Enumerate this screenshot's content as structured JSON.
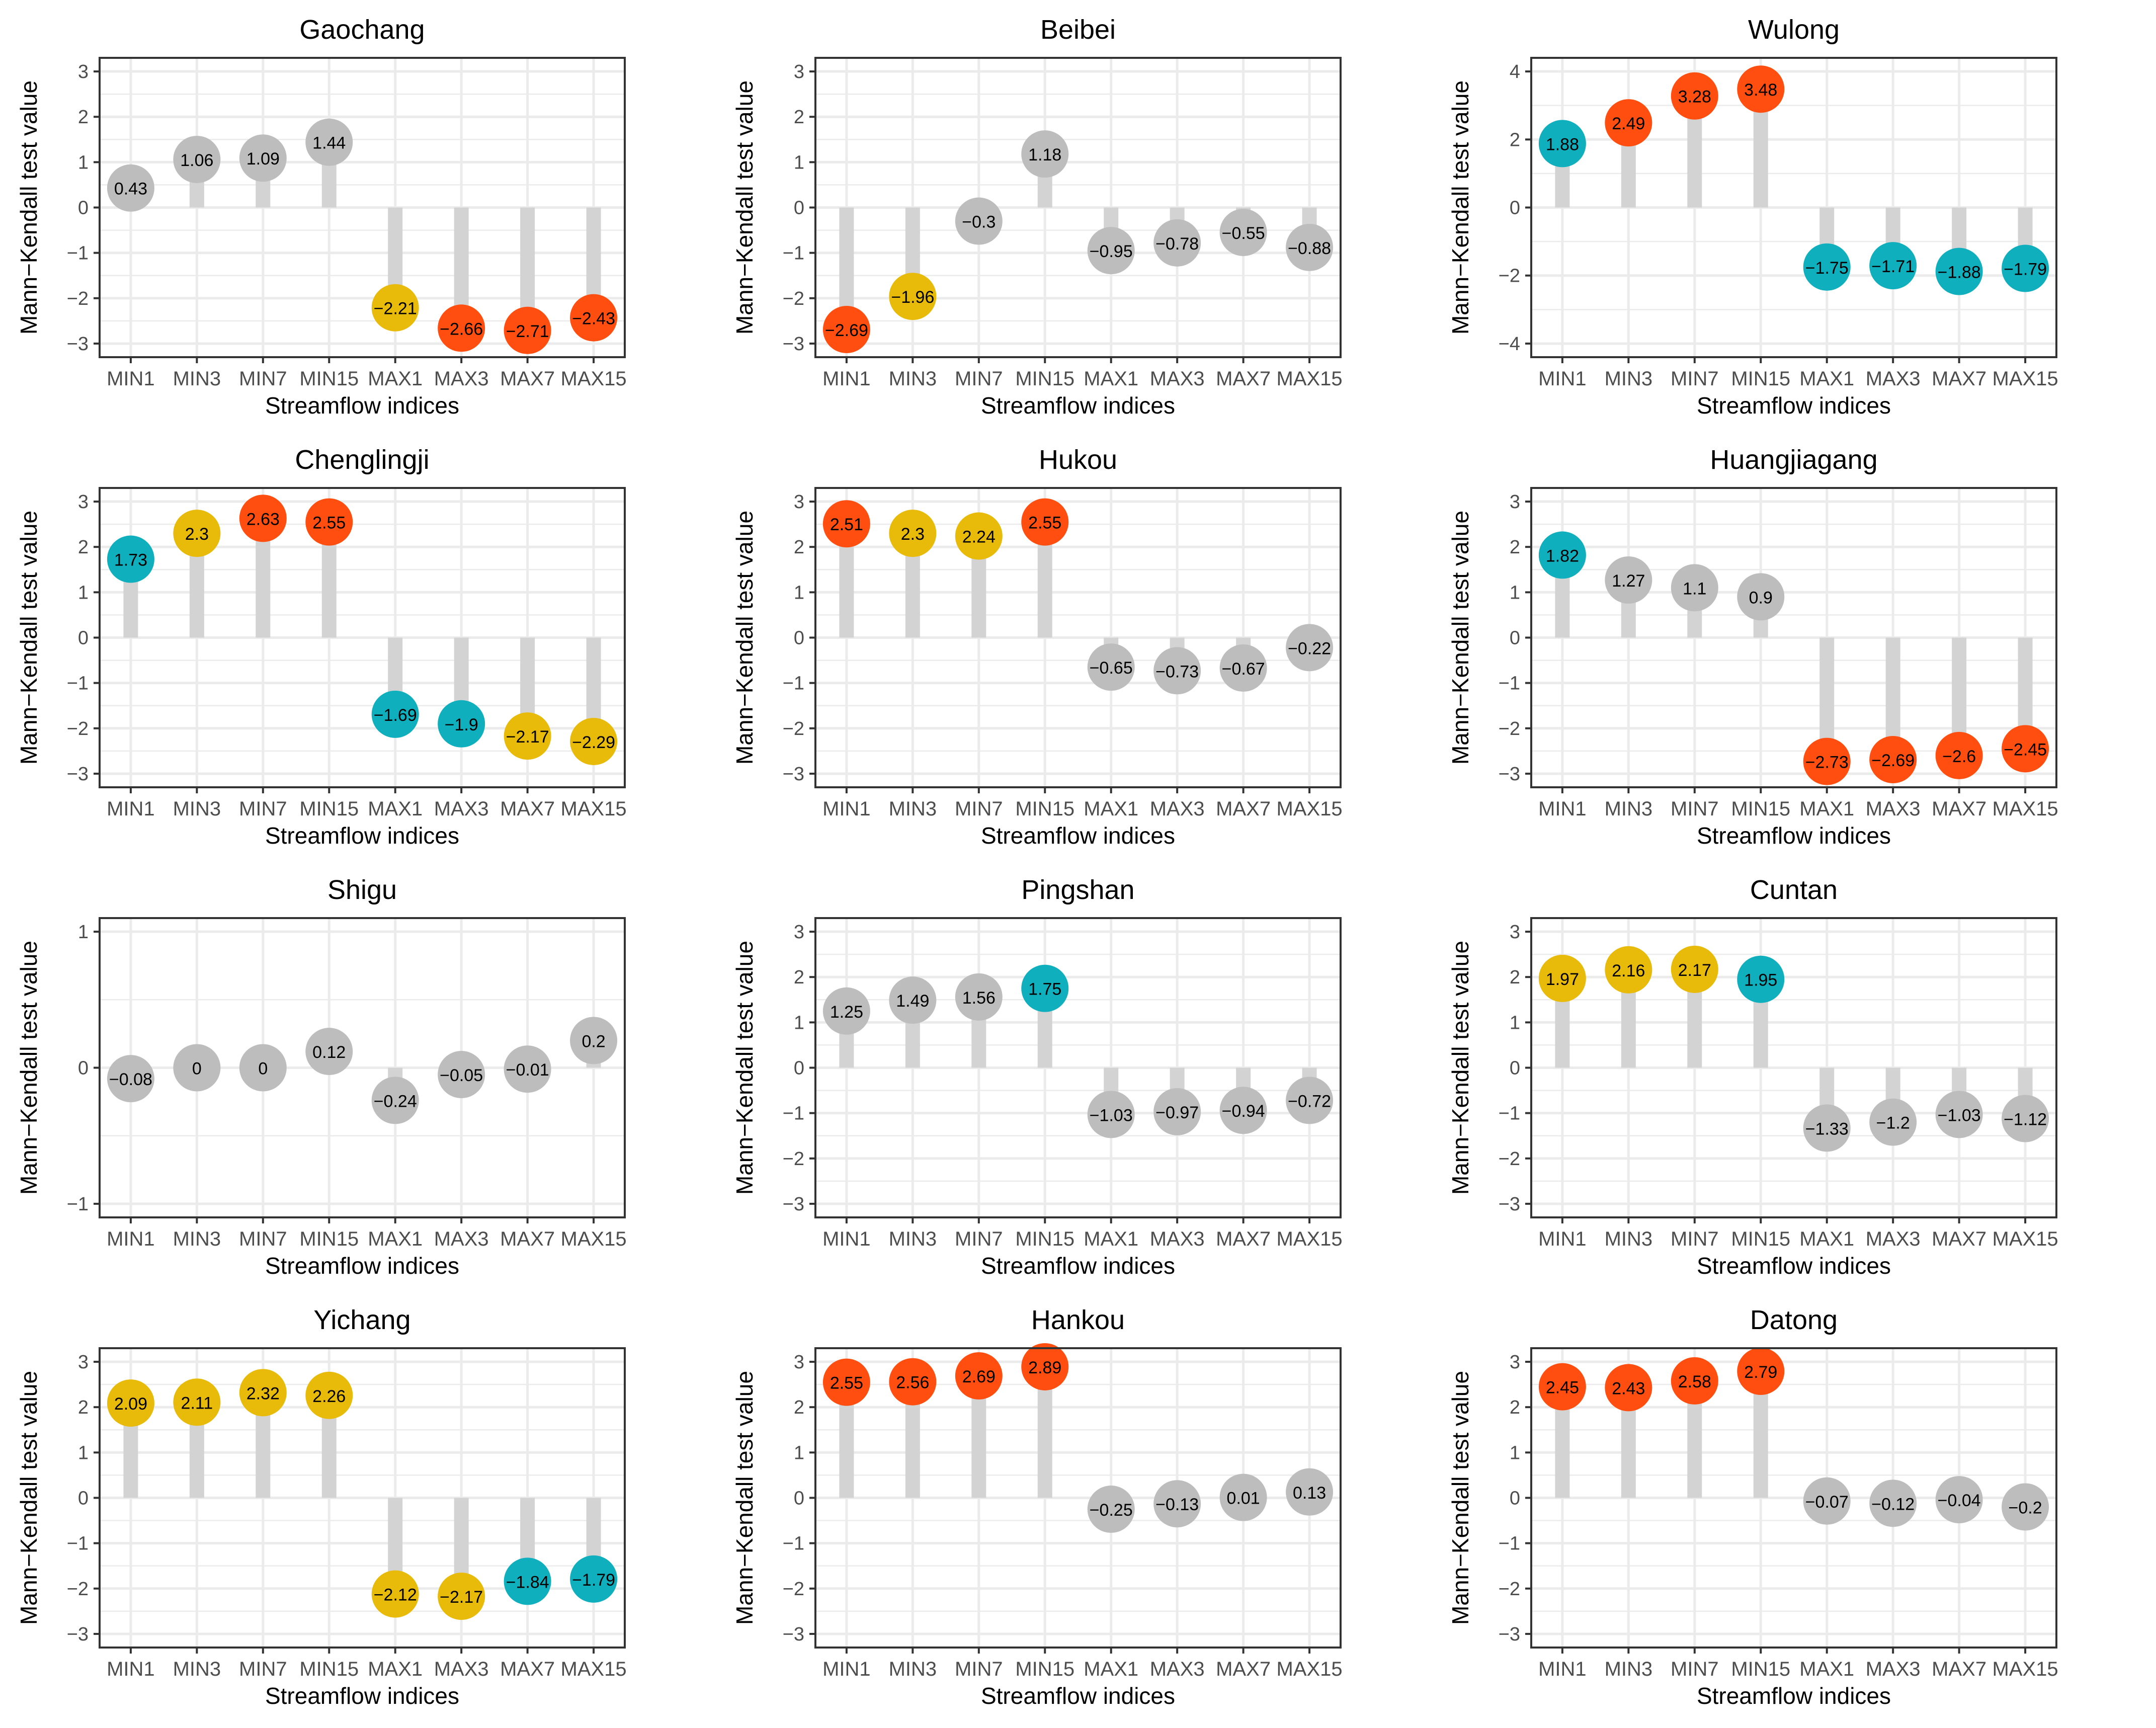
{
  "colors": {
    "gray": "#BDBDBD",
    "cyan": "#0FAFBE",
    "yellow": "#E8BA0A",
    "red": "#FF4E0F",
    "stem": "#D3D3D3",
    "grid": "#EBEBEB",
    "frame": "#333333",
    "tick_text": "#4D4D4D"
  },
  "chart_data": [
    {
      "type": "scatter",
      "title": "Gaochang",
      "xlabel": "Streamflow indices",
      "ylabel": "Mann−Kendall test value",
      "ylim": [
        -3.3,
        3.3
      ],
      "yticks": [
        -3,
        -2,
        -1,
        0,
        1,
        2,
        3
      ],
      "categories": [
        "MIN1",
        "MIN3",
        "MIN7",
        "MIN15",
        "MAX1",
        "MAX3",
        "MAX7",
        "MAX15"
      ],
      "values": [
        0.43,
        1.06,
        1.09,
        1.44,
        -2.21,
        -2.66,
        -2.71,
        -2.43
      ],
      "labels": [
        "0.43",
        "1.06",
        "1.09",
        "1.44",
        "−2.21",
        "−2.66",
        "−2.71",
        "−2.43"
      ],
      "colors": [
        "gray",
        "gray",
        "gray",
        "gray",
        "yellow",
        "red",
        "red",
        "red"
      ]
    },
    {
      "type": "scatter",
      "title": "Beibei",
      "xlabel": "Streamflow indices",
      "ylabel": "Mann−Kendall test value",
      "ylim": [
        -3.3,
        3.3
      ],
      "yticks": [
        -3,
        -2,
        -1,
        0,
        1,
        2,
        3
      ],
      "categories": [
        "MIN1",
        "MIN3",
        "MIN7",
        "MIN15",
        "MAX1",
        "MAX3",
        "MAX7",
        "MAX15"
      ],
      "values": [
        -2.69,
        -1.96,
        -0.3,
        1.18,
        -0.95,
        -0.78,
        -0.55,
        -0.88
      ],
      "labels": [
        "−2.69",
        "−1.96",
        "−0.3",
        "1.18",
        "−0.95",
        "−0.78",
        "−0.55",
        "−0.88"
      ],
      "colors": [
        "red",
        "yellow",
        "gray",
        "gray",
        "gray",
        "gray",
        "gray",
        "gray"
      ]
    },
    {
      "type": "scatter",
      "title": "Wulong",
      "xlabel": "Streamflow indices",
      "ylabel": "Mann−Kendall test value",
      "ylim": [
        -4.4,
        4.4
      ],
      "yticks": [
        -4,
        -2,
        0,
        2,
        4
      ],
      "categories": [
        "MIN1",
        "MIN3",
        "MIN7",
        "MIN15",
        "MAX1",
        "MAX3",
        "MAX7",
        "MAX15"
      ],
      "values": [
        1.88,
        2.49,
        3.28,
        3.48,
        -1.75,
        -1.71,
        -1.88,
        -1.79
      ],
      "labels": [
        "1.88",
        "2.49",
        "3.28",
        "3.48",
        "−1.75",
        "−1.71",
        "−1.88",
        "−1.79"
      ],
      "colors": [
        "cyan",
        "red",
        "red",
        "red",
        "cyan",
        "cyan",
        "cyan",
        "cyan"
      ]
    },
    {
      "type": "scatter",
      "title": "Chenglingji",
      "xlabel": "Streamflow indices",
      "ylabel": "Mann−Kendall test value",
      "ylim": [
        -3.3,
        3.3
      ],
      "yticks": [
        -3,
        -2,
        -1,
        0,
        1,
        2,
        3
      ],
      "categories": [
        "MIN1",
        "MIN3",
        "MIN7",
        "MIN15",
        "MAX1",
        "MAX3",
        "MAX7",
        "MAX15"
      ],
      "values": [
        1.73,
        2.3,
        2.63,
        2.55,
        -1.69,
        -1.9,
        -2.17,
        -2.29
      ],
      "labels": [
        "1.73",
        "2.3",
        "2.63",
        "2.55",
        "−1.69",
        "−1.9",
        "−2.17",
        "−2.29"
      ],
      "colors": [
        "cyan",
        "yellow",
        "red",
        "red",
        "cyan",
        "cyan",
        "yellow",
        "yellow"
      ]
    },
    {
      "type": "scatter",
      "title": "Hukou",
      "xlabel": "Streamflow indices",
      "ylabel": "Mann−Kendall test value",
      "ylim": [
        -3.3,
        3.3
      ],
      "yticks": [
        -3,
        -2,
        -1,
        0,
        1,
        2,
        3
      ],
      "categories": [
        "MIN1",
        "MIN3",
        "MIN7",
        "MIN15",
        "MAX1",
        "MAX3",
        "MAX7",
        "MAX15"
      ],
      "values": [
        2.51,
        2.3,
        2.24,
        2.55,
        -0.65,
        -0.73,
        -0.67,
        -0.22
      ],
      "labels": [
        "2.51",
        "2.3",
        "2.24",
        "2.55",
        "−0.65",
        "−0.73",
        "−0.67",
        "−0.22"
      ],
      "colors": [
        "red",
        "yellow",
        "yellow",
        "red",
        "gray",
        "gray",
        "gray",
        "gray"
      ]
    },
    {
      "type": "scatter",
      "title": "Huangjiagang",
      "xlabel": "Streamflow indices",
      "ylabel": "Mann−Kendall test value",
      "ylim": [
        -3.3,
        3.3
      ],
      "yticks": [
        -3,
        -2,
        -1,
        0,
        1,
        2,
        3
      ],
      "categories": [
        "MIN1",
        "MIN3",
        "MIN7",
        "MIN15",
        "MAX1",
        "MAX3",
        "MAX7",
        "MAX15"
      ],
      "values": [
        1.82,
        1.27,
        1.1,
        0.9,
        -2.73,
        -2.69,
        -2.6,
        -2.45
      ],
      "labels": [
        "1.82",
        "1.27",
        "1.1",
        "0.9",
        "−2.73",
        "−2.69",
        "−2.6",
        "−2.45"
      ],
      "colors": [
        "cyan",
        "gray",
        "gray",
        "gray",
        "red",
        "red",
        "red",
        "red"
      ]
    },
    {
      "type": "scatter",
      "title": "Shigu",
      "xlabel": "Streamflow indices",
      "ylabel": "Mann−Kendall test value",
      "ylim": [
        -1.1,
        1.1
      ],
      "yticks": [
        -1,
        0,
        1
      ],
      "categories": [
        "MIN1",
        "MIN3",
        "MIN7",
        "MIN15",
        "MAX1",
        "MAX3",
        "MAX7",
        "MAX15"
      ],
      "values": [
        -0.08,
        0,
        0,
        0.12,
        -0.24,
        -0.05,
        -0.01,
        0.2
      ],
      "labels": [
        "−0.08",
        "0",
        "0",
        "0.12",
        "−0.24",
        "−0.05",
        "−0.01",
        "0.2"
      ],
      "colors": [
        "gray",
        "gray",
        "gray",
        "gray",
        "gray",
        "gray",
        "gray",
        "gray"
      ]
    },
    {
      "type": "scatter",
      "title": "Pingshan",
      "xlabel": "Streamflow indices",
      "ylabel": "Mann−Kendall test value",
      "ylim": [
        -3.3,
        3.3
      ],
      "yticks": [
        -3,
        -2,
        -1,
        0,
        1,
        2,
        3
      ],
      "categories": [
        "MIN1",
        "MIN3",
        "MIN7",
        "MIN15",
        "MAX1",
        "MAX3",
        "MAX7",
        "MAX15"
      ],
      "values": [
        1.25,
        1.49,
        1.56,
        1.75,
        -1.03,
        -0.97,
        -0.94,
        -0.72
      ],
      "labels": [
        "1.25",
        "1.49",
        "1.56",
        "1.75",
        "−1.03",
        "−0.97",
        "−0.94",
        "−0.72"
      ],
      "colors": [
        "gray",
        "gray",
        "gray",
        "cyan",
        "gray",
        "gray",
        "gray",
        "gray"
      ]
    },
    {
      "type": "scatter",
      "title": "Cuntan",
      "xlabel": "Streamflow indices",
      "ylabel": "Mann−Kendall test value",
      "ylim": [
        -3.3,
        3.3
      ],
      "yticks": [
        -3,
        -2,
        -1,
        0,
        1,
        2,
        3
      ],
      "categories": [
        "MIN1",
        "MIN3",
        "MIN7",
        "MIN15",
        "MAX1",
        "MAX3",
        "MAX7",
        "MAX15"
      ],
      "values": [
        1.97,
        2.16,
        2.17,
        1.95,
        -1.33,
        -1.2,
        -1.03,
        -1.12
      ],
      "labels": [
        "1.97",
        "2.16",
        "2.17",
        "1.95",
        "−1.33",
        "−1.2",
        "−1.03",
        "−1.12"
      ],
      "colors": [
        "yellow",
        "yellow",
        "yellow",
        "cyan",
        "gray",
        "gray",
        "gray",
        "gray"
      ]
    },
    {
      "type": "scatter",
      "title": "Yichang",
      "xlabel": "Streamflow indices",
      "ylabel": "Mann−Kendall test value",
      "ylim": [
        -3.3,
        3.3
      ],
      "yticks": [
        -3,
        -2,
        -1,
        0,
        1,
        2,
        3
      ],
      "categories": [
        "MIN1",
        "MIN3",
        "MIN7",
        "MIN15",
        "MAX1",
        "MAX3",
        "MAX7",
        "MAX15"
      ],
      "values": [
        2.09,
        2.11,
        2.32,
        2.26,
        -2.12,
        -2.17,
        -1.84,
        -1.79
      ],
      "labels": [
        "2.09",
        "2.11",
        "2.32",
        "2.26",
        "−2.12",
        "−2.17",
        "−1.84",
        "−1.79"
      ],
      "colors": [
        "yellow",
        "yellow",
        "yellow",
        "yellow",
        "yellow",
        "yellow",
        "cyan",
        "cyan"
      ]
    },
    {
      "type": "scatter",
      "title": "Hankou",
      "xlabel": "Streamflow indices",
      "ylabel": "Mann−Kendall test value",
      "ylim": [
        -3.3,
        3.3
      ],
      "yticks": [
        -3,
        -2,
        -1,
        0,
        1,
        2,
        3
      ],
      "categories": [
        "MIN1",
        "MIN3",
        "MIN7",
        "MIN15",
        "MAX1",
        "MAX3",
        "MAX7",
        "MAX15"
      ],
      "values": [
        2.55,
        2.56,
        2.69,
        2.89,
        -0.25,
        -0.13,
        0.01,
        0.13
      ],
      "labels": [
        "2.55",
        "2.56",
        "2.69",
        "2.89",
        "−0.25",
        "−0.13",
        "0.01",
        "0.13"
      ],
      "colors": [
        "red",
        "red",
        "red",
        "red",
        "gray",
        "gray",
        "gray",
        "gray"
      ]
    },
    {
      "type": "scatter",
      "title": "Datong",
      "xlabel": "Streamflow indices",
      "ylabel": "Mann−Kendall test value",
      "ylim": [
        -3.3,
        3.3
      ],
      "yticks": [
        -3,
        -2,
        -1,
        0,
        1,
        2,
        3
      ],
      "categories": [
        "MIN1",
        "MIN3",
        "MIN7",
        "MIN15",
        "MAX1",
        "MAX3",
        "MAX7",
        "MAX15"
      ],
      "values": [
        2.45,
        2.43,
        2.58,
        2.79,
        -0.07,
        -0.12,
        -0.04,
        -0.2
      ],
      "labels": [
        "2.45",
        "2.43",
        "2.58",
        "2.79",
        "−0.07",
        "−0.12",
        "−0.04",
        "−0.2"
      ],
      "colors": [
        "red",
        "red",
        "red",
        "red",
        "gray",
        "gray",
        "gray",
        "gray"
      ]
    }
  ]
}
